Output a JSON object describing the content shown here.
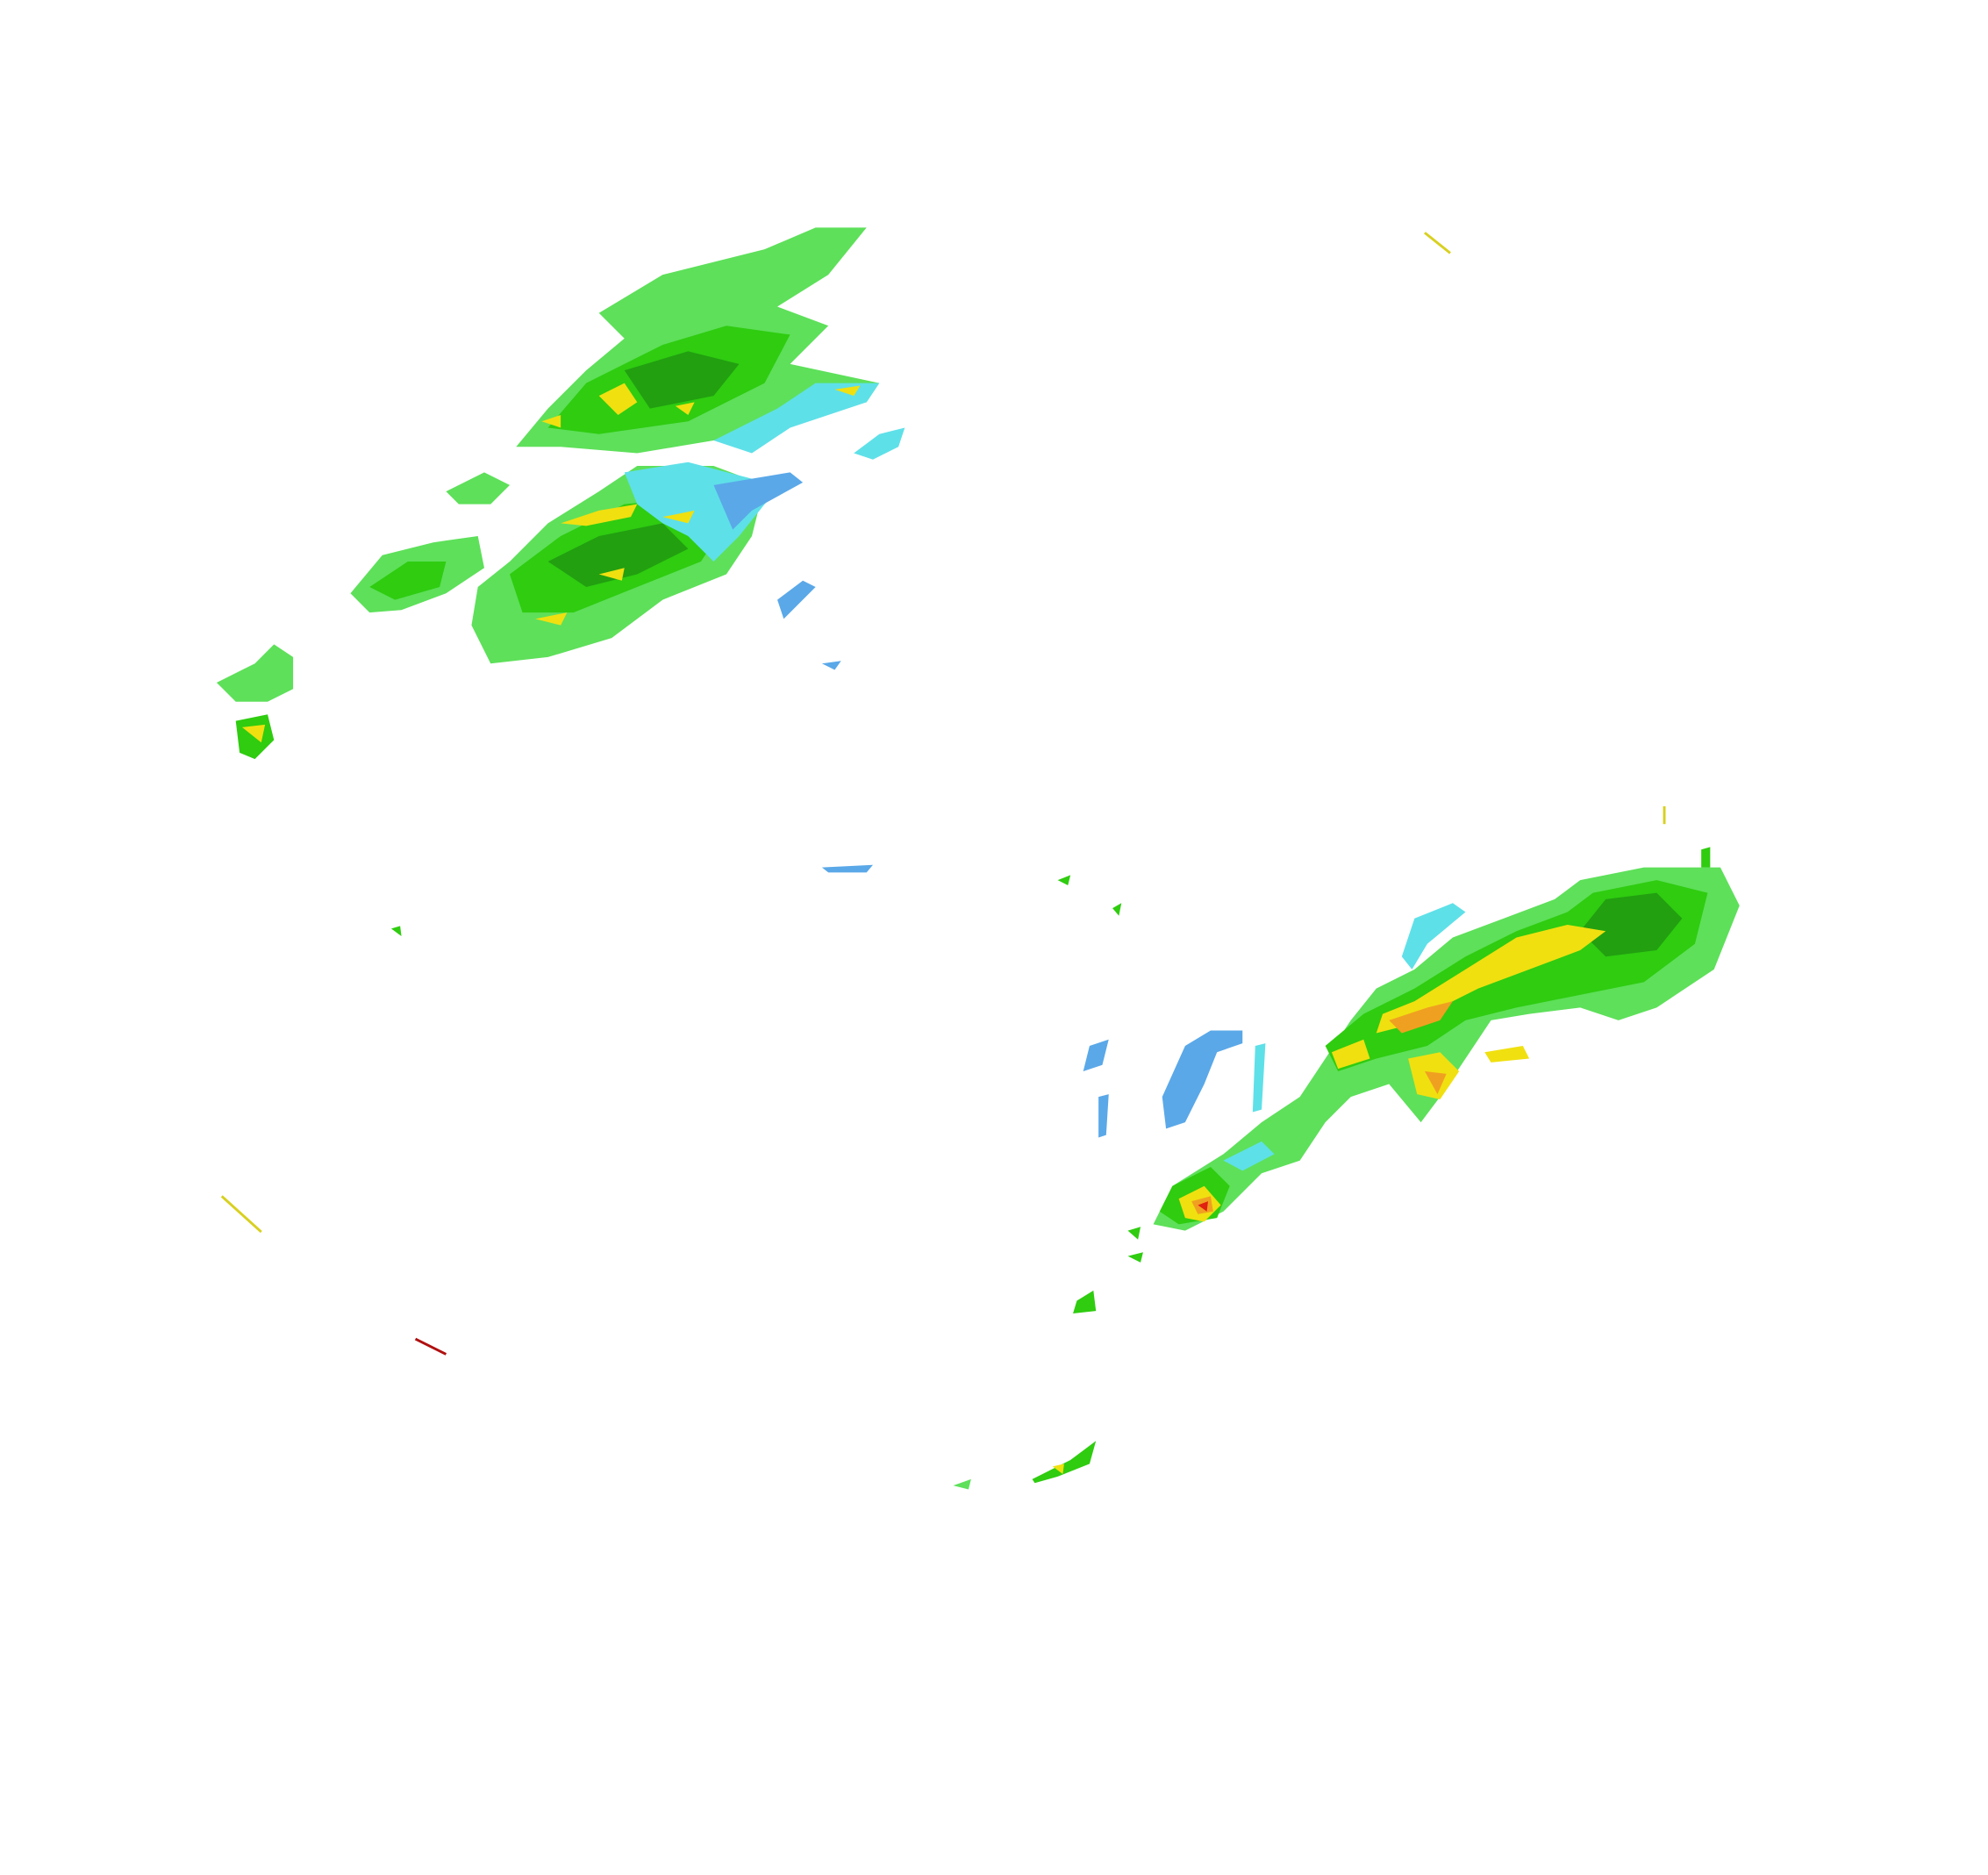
{
  "radar": {
    "product": "reflectivity",
    "background": "#ffffff",
    "colors": {
      "very_light": "#5aa8e8",
      "light_cyan": "#5ee0e8",
      "light_green": "#5ee05a",
      "green": "#2fcc10",
      "dark_green": "#22a010",
      "yellow": "#f0e010",
      "orange": "#f0a020",
      "red": "#e02010",
      "dark_red": "#b01010"
    }
  }
}
